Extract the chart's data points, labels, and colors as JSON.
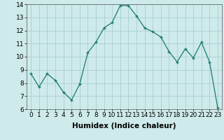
{
  "x": [
    0,
    1,
    2,
    3,
    4,
    5,
    6,
    7,
    8,
    9,
    10,
    11,
    12,
    13,
    14,
    15,
    16,
    17,
    18,
    19,
    20,
    21,
    22,
    23
  ],
  "y": [
    8.7,
    7.7,
    8.7,
    8.2,
    7.3,
    6.7,
    7.9,
    10.3,
    11.1,
    12.2,
    12.6,
    13.9,
    13.9,
    13.1,
    12.2,
    11.9,
    11.5,
    10.4,
    9.6,
    10.6,
    9.9,
    11.1,
    9.6,
    6.1
  ],
  "xlabel": "Humidex (Indice chaleur)",
  "ylim": [
    6,
    14
  ],
  "xlim_min": -0.5,
  "xlim_max": 23.5,
  "yticks": [
    6,
    7,
    8,
    9,
    10,
    11,
    12,
    13,
    14
  ],
  "xticks": [
    0,
    1,
    2,
    3,
    4,
    5,
    6,
    7,
    8,
    9,
    10,
    11,
    12,
    13,
    14,
    15,
    16,
    17,
    18,
    19,
    20,
    21,
    22,
    23
  ],
  "line_color": "#1a7a6e",
  "marker_color": "#1a7a6e",
  "bg_color": "#ceeaea",
  "grid_color": "#aacfcf",
  "xlabel_fontsize": 7.5,
  "tick_fontsize": 6.5
}
